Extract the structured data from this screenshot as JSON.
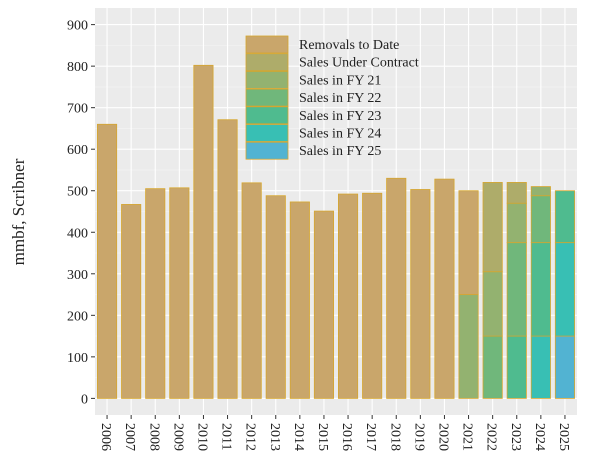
{
  "chart_data": {
    "type": "stacked_bar",
    "y_label": "mmbf, Scribner",
    "categories": [
      "2006",
      "2007",
      "2008",
      "2009",
      "2010",
      "2011",
      "2012",
      "2013",
      "2014",
      "2015",
      "2016",
      "2017",
      "2018",
      "2019",
      "2020",
      "2021",
      "2022",
      "2023",
      "2024",
      "2025"
    ],
    "ylim": [
      -40,
      940
    ],
    "yticks": [
      0,
      100,
      200,
      300,
      400,
      500,
      600,
      700,
      800,
      900
    ],
    "grid": true,
    "series": [
      {
        "name": "Removals to Date",
        "color": "#c9a66b",
        "values": [
          660,
          467,
          505,
          507,
          802,
          671,
          519,
          488,
          473,
          451,
          492,
          494,
          530,
          503,
          528,
          250,
          null,
          null,
          null,
          null
        ]
      },
      {
        "name": "Sales Under Contract",
        "color": "#aeac6a",
        "values": [
          null,
          null,
          null,
          null,
          null,
          null,
          null,
          null,
          null,
          null,
          null,
          null,
          null,
          null,
          null,
          null,
          215,
          50,
          null,
          null
        ]
      },
      {
        "name": "Sales in FY 21",
        "color": "#93b270",
        "values": [
          null,
          null,
          null,
          null,
          null,
          null,
          null,
          null,
          null,
          null,
          null,
          null,
          null,
          null,
          null,
          250,
          155,
          95,
          22,
          null
        ]
      },
      {
        "name": "Sales in FY 22",
        "color": "#70b77b",
        "values": [
          null,
          null,
          null,
          null,
          null,
          null,
          null,
          null,
          null,
          null,
          null,
          null,
          null,
          null,
          null,
          null,
          150,
          225,
          113,
          null
        ]
      },
      {
        "name": "Sales in FY 23",
        "color": "#4fbb8f",
        "values": [
          null,
          null,
          null,
          null,
          null,
          null,
          null,
          null,
          null,
          null,
          null,
          null,
          null,
          null,
          null,
          null,
          null,
          150,
          225,
          125
        ]
      },
      {
        "name": "Sales in FY 24",
        "color": "#38bfb4",
        "values": [
          null,
          null,
          null,
          null,
          null,
          null,
          null,
          null,
          null,
          null,
          null,
          null,
          null,
          null,
          null,
          null,
          null,
          null,
          150,
          225
        ]
      },
      {
        "name": "Sales in FY 25",
        "color": "#52b3d2",
        "values": [
          null,
          null,
          null,
          null,
          null,
          null,
          null,
          null,
          null,
          null,
          null,
          null,
          null,
          null,
          null,
          null,
          null,
          null,
          null,
          150
        ]
      }
    ]
  }
}
